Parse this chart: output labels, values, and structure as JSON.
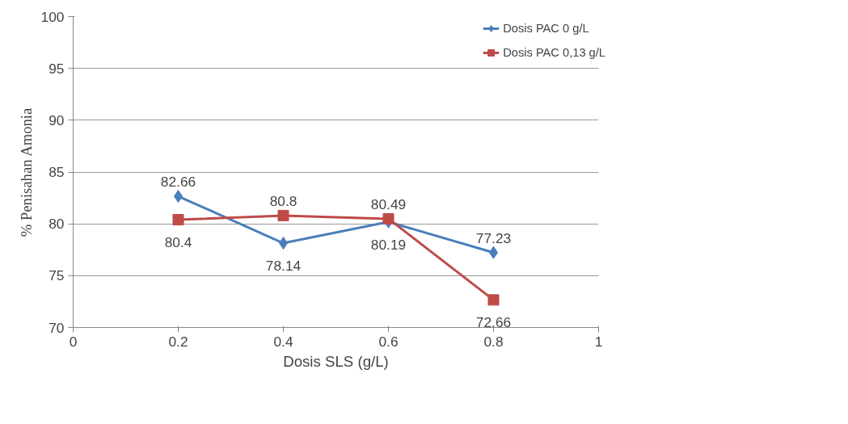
{
  "chart_data": {
    "type": "line",
    "xlabel": "Dosis SLS (g/L)",
    "ylabel": "% Penisahan Amonia",
    "x": [
      0.2,
      0.4,
      0.6,
      0.8
    ],
    "series": [
      {
        "name": "Dosis PAC 0 g/L",
        "color": "#4a7ebb",
        "marker": "diamond",
        "values": [
          82.66,
          78.14,
          80.19,
          77.23
        ]
      },
      {
        "name": "Dosis PAC 0,13 g/L",
        "color": "#be4b48",
        "marker": "square",
        "values": [
          80.4,
          80.8,
          80.49,
          72.66
        ]
      }
    ],
    "xlim": [
      0,
      1
    ],
    "xticks": [
      0,
      0.2,
      0.4,
      0.6,
      0.8,
      1
    ],
    "ylim": [
      70,
      100
    ],
    "yticks": [
      70,
      75,
      80,
      85,
      90,
      95,
      100
    ],
    "grid": "y",
    "legend": "top right",
    "data_labels": true,
    "line_style": "solid"
  }
}
